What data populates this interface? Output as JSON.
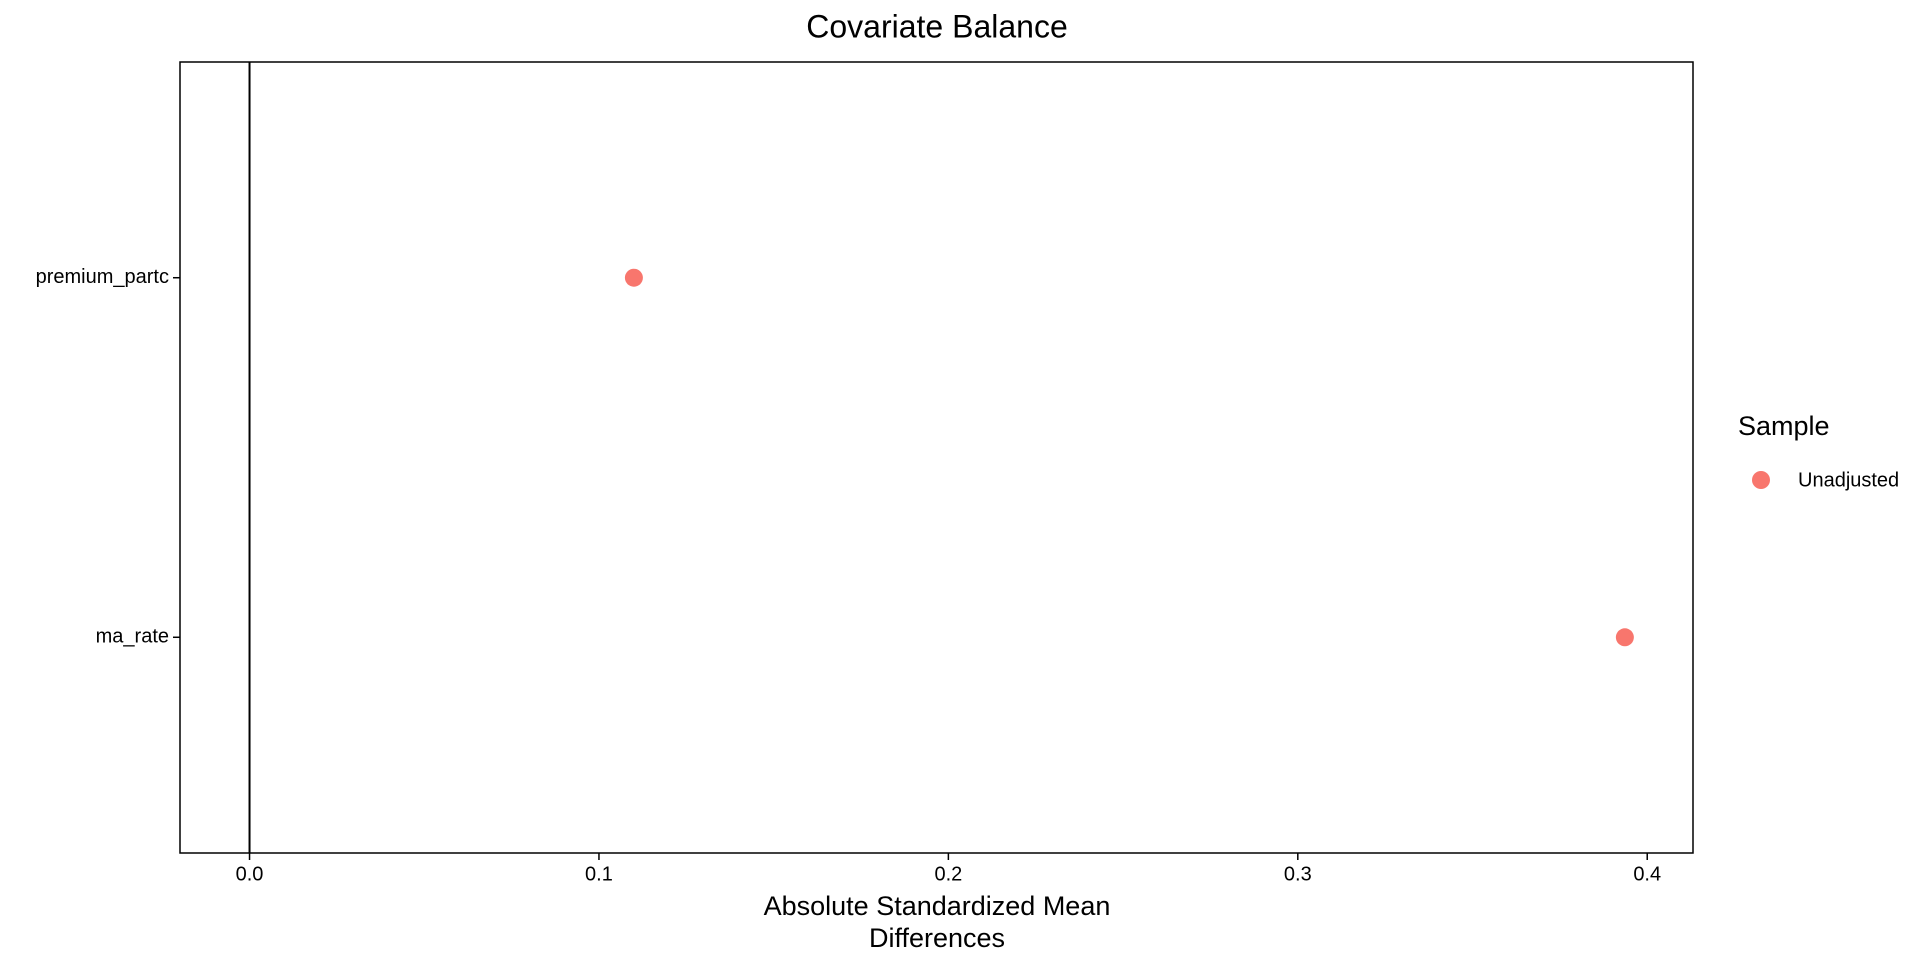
{
  "chart_data": {
    "type": "dot",
    "title": "Covariate Balance",
    "xlabel": "Absolute Standardized Mean Differences",
    "categories": [
      "premium_partc",
      "ma_rate"
    ],
    "series": [
      {
        "name": "Unadjusted",
        "color": "#F8766D",
        "values": [
          0.11,
          0.3936
        ]
      }
    ],
    "legend_title": "Sample",
    "legend": "right",
    "xlim": [
      -0.0199,
      0.4131
    ],
    "xticks": [
      {
        "value": 0,
        "label": "0.0"
      },
      0.1,
      0.2,
      0.3,
      0.4
    ],
    "reference_line": 0,
    "grid": false
  }
}
